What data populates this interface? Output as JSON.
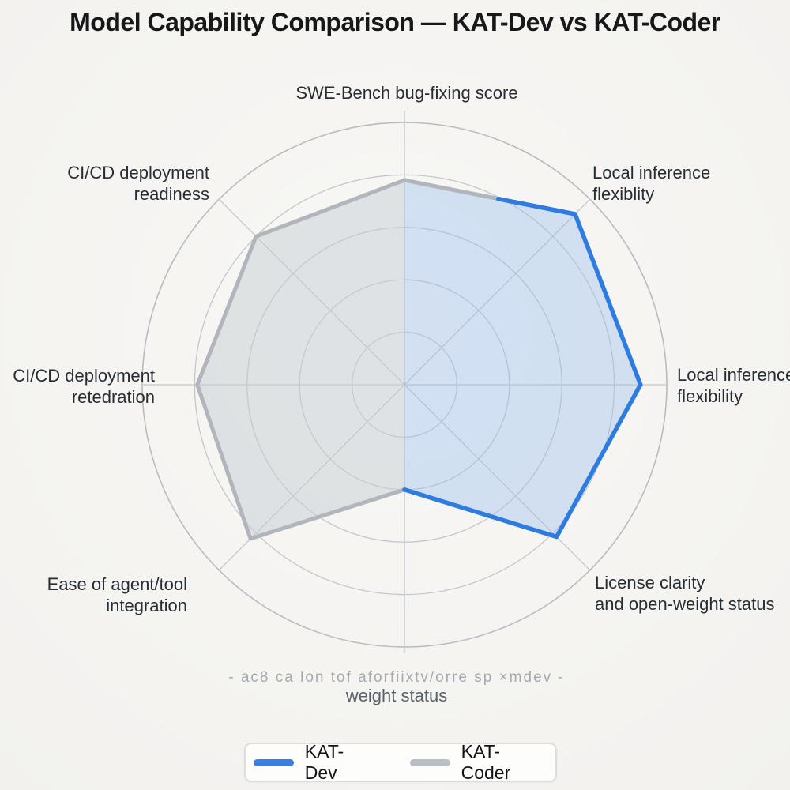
{
  "title": "Model Capability Comparison — KAT-Dev vs KAT-Coder",
  "chart_data": {
    "type": "radar",
    "axes": [
      "SWE-Bench bug-fixing score",
      "Local inference flexiblity",
      "Local inference flexibility",
      "License clarity and open-weight status",
      "weight status",
      "Ease of agent/tool integration",
      "CI/CD deployment retedration",
      "CI/CD deployment readiness"
    ],
    "series": [
      {
        "name": "KAT-Dev",
        "color": "#2e7ce0",
        "fill": "rgba(158,194,238,0.42)",
        "values": [
          0.78,
          0.92,
          0.9,
          0.82,
          0.4,
          0.83,
          0.79,
          0.8
        ]
      },
      {
        "name": "KAT-Coder",
        "color": "#b1b6bc",
        "fill": "rgba(198,205,212,0.50)",
        "values": [
          0.78,
          0.92,
          0.9,
          0.82,
          0.4,
          0.83,
          0.79,
          0.8
        ]
      }
    ],
    "scale": {
      "min": 0,
      "max": 1,
      "rings": 5
    },
    "grid": true,
    "grid_color": "#c3c7cc",
    "legend_position": "bottom"
  },
  "labels": {
    "top": "SWE-Bench bug-fixing score",
    "top_right": "Local inference\nflexiblity",
    "right": "Local inference\nflexibility",
    "bottom_right": "License clarity\nand open-weight status",
    "bottom_garbled": "- ac8 ca lon tof aforfiixtv/orre sp ×mdev -",
    "bottom": "weight status",
    "bottom_left": "Ease of agent/tool\nintegration",
    "left": "CI/CD deployment\nretedration",
    "top_left": "CI/CD deployment\nreadiness"
  },
  "legend": {
    "items": [
      {
        "label": "KAT-Dev",
        "color": "#3b7ee2"
      },
      {
        "label": "KAT-Coder",
        "color": "#b9bec4"
      }
    ]
  }
}
